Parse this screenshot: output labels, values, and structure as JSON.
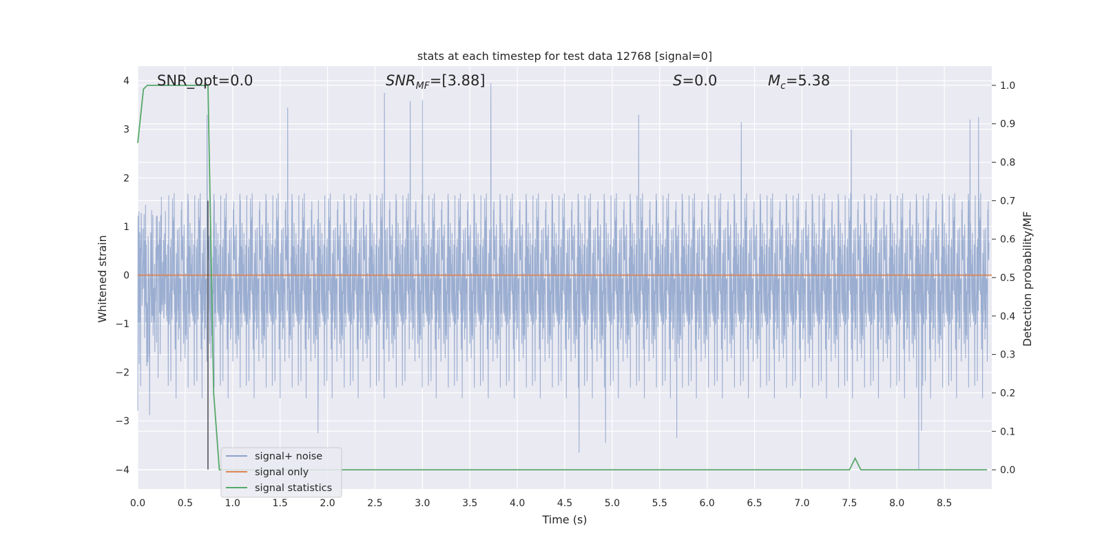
{
  "chart_data": {
    "type": "line",
    "title": "stats at each timestep for test data 12768 [signal=0]",
    "xlabel": "Time (s)",
    "ylabel": "Whitened strain",
    "y2label": "Detection probability/MF",
    "xlim": [
      0.0,
      9.0
    ],
    "ylim": [
      -4.4,
      4.3
    ],
    "y2lim": [
      -0.05,
      1.05
    ],
    "xticks": [
      "0.0",
      "0.5",
      "1.0",
      "1.5",
      "2.0",
      "2.5",
      "3.0",
      "3.5",
      "4.0",
      "4.5",
      "5.0",
      "5.5",
      "6.0",
      "6.5",
      "7.0",
      "7.5",
      "8.0",
      "8.5"
    ],
    "yticks": [
      "4",
      "3",
      "2",
      "1",
      "0",
      "−1",
      "−2",
      "−3",
      "−4"
    ],
    "y2ticks": [
      "1.0",
      "0.9",
      "0.8",
      "0.7",
      "0.6",
      "0.5",
      "0.4",
      "0.3",
      "0.2",
      "0.1",
      "0.0"
    ],
    "grid": true,
    "legend_position": "lower-left",
    "annotations": {
      "snr_opt": "SNR_opt=0.0",
      "snr_mf_main": "SNR",
      "snr_mf_sub": "MF",
      "snr_mf_value": "=[3.88]",
      "s_symbol": "S",
      "s_value": "=0.0",
      "mc_symbol": "M",
      "mc_sub": "c",
      "mc_value": "=5.38"
    },
    "series": [
      {
        "name": "signal+ noise",
        "color": "#4c72b0",
        "axis": "left",
        "description_note": "whitened noisy strain, ~N(0,1)",
        "peaks_max": [
          [
            0.73,
            3.3
          ],
          [
            1.58,
            3.45
          ],
          [
            2.6,
            3.75
          ],
          [
            2.87,
            3.58
          ],
          [
            3.0,
            3.6
          ],
          [
            3.72,
            3.95
          ],
          [
            5.28,
            3.3
          ],
          [
            6.36,
            3.15
          ],
          [
            7.52,
            3.0
          ],
          [
            8.77,
            3.2
          ],
          [
            8.86,
            3.25
          ]
        ],
        "peaks_min": [
          [
            1.9,
            -3.25
          ],
          [
            4.65,
            -3.65
          ],
          [
            4.93,
            -3.45
          ],
          [
            5.68,
            -3.35
          ],
          [
            8.23,
            -4.0
          ],
          [
            8.26,
            -3.2
          ]
        ]
      },
      {
        "name": "signal only",
        "color": "#dd8452",
        "axis": "left",
        "x": [
          0.0,
          9.0
        ],
        "y": [
          0.0,
          0.0
        ]
      },
      {
        "name": "signal statistics",
        "color": "#55a868",
        "axis": "right",
        "x": [
          0.0,
          0.06,
          0.1,
          0.2,
          0.3,
          0.5,
          0.7,
          0.74,
          0.8,
          0.86,
          1.0,
          2.0,
          3.0,
          4.0,
          5.0,
          6.0,
          7.0,
          7.5,
          7.56,
          7.62,
          8.0,
          8.5,
          8.95
        ],
        "y": [
          0.85,
          0.99,
          1.0,
          1.0,
          1.0,
          1.0,
          1.0,
          1.0,
          0.2,
          0.0,
          0.0,
          0.0,
          0.0,
          0.0,
          0.0,
          0.0,
          0.0,
          0.0,
          0.03,
          0.0,
          0.0,
          0.0,
          0.0
        ]
      }
    ],
    "vline": {
      "x": 0.74,
      "y_from": -4.0,
      "y_to": 0.7,
      "color": "#333333"
    }
  }
}
